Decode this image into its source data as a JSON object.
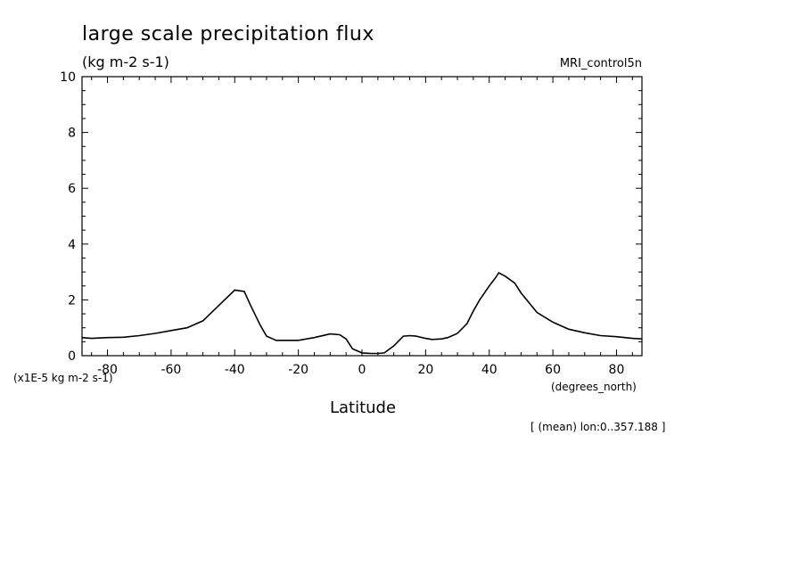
{
  "chart_data": {
    "type": "line",
    "title": "large scale precipitation flux",
    "units_label": "(kg m-2 s-1)",
    "model_label": "MRI_control5n",
    "scale_label": "(x1E-5 kg m-2 s-1)",
    "xunits_label": "(degrees_north)",
    "xlabel": "Latitude",
    "footnote": "[ (mean) lon:0..357.188 ]",
    "xlim": [
      -88,
      88
    ],
    "ylim": [
      0,
      10
    ],
    "xticks": [
      -80,
      -60,
      -40,
      -20,
      0,
      20,
      40,
      60,
      80
    ],
    "xtick_labels": [
      "-80",
      "-60",
      "-40",
      "-20",
      "0",
      "20",
      "40",
      "60",
      "80"
    ],
    "yticks": [
      0,
      2,
      4,
      6,
      8,
      10
    ],
    "ytick_labels": [
      "0",
      "2",
      "4",
      "6",
      "8",
      "10"
    ],
    "grid": false,
    "series": [
      {
        "x": [
          -88,
          -85,
          -80,
          -75,
          -70,
          -65,
          -60,
          -55,
          -50,
          -45,
          -40,
          -37,
          -35,
          -32,
          -30,
          -27,
          -25,
          -20,
          -15,
          -10,
          -7,
          -5,
          -3,
          0,
          3,
          5,
          7,
          10,
          13,
          15,
          17,
          20,
          22,
          25,
          27,
          30,
          33,
          35,
          37,
          40,
          42,
          43,
          45,
          48,
          50,
          55,
          60,
          65,
          70,
          75,
          80,
          85,
          88
        ],
        "y": [
          0.65,
          0.62,
          0.65,
          0.66,
          0.72,
          0.8,
          0.9,
          1.0,
          1.25,
          1.8,
          2.35,
          2.3,
          1.8,
          1.1,
          0.7,
          0.55,
          0.55,
          0.55,
          0.65,
          0.78,
          0.75,
          0.6,
          0.25,
          0.1,
          0.08,
          0.08,
          0.1,
          0.35,
          0.7,
          0.72,
          0.7,
          0.62,
          0.58,
          0.6,
          0.65,
          0.8,
          1.15,
          1.6,
          2.0,
          2.5,
          2.8,
          2.97,
          2.85,
          2.6,
          2.25,
          1.55,
          1.2,
          0.95,
          0.82,
          0.72,
          0.68,
          0.62,
          0.6
        ]
      }
    ]
  }
}
